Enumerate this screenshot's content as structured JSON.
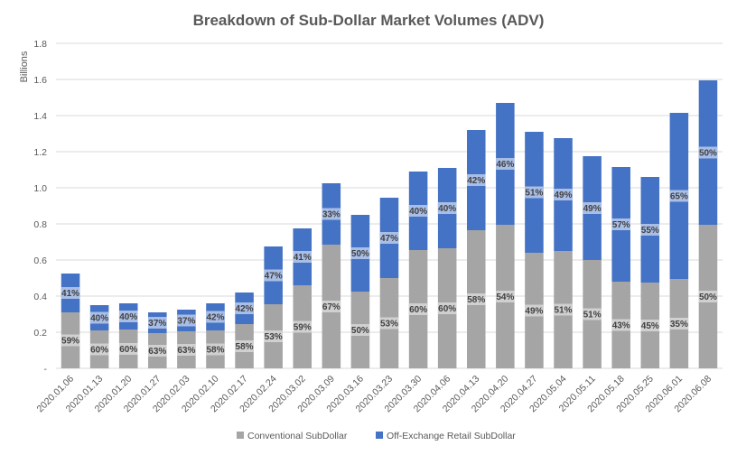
{
  "chart_data": {
    "type": "bar",
    "stacked": true,
    "title": "Breakdown of Sub-Dollar Market Volumes (ADV)",
    "ylabel": "Billions",
    "xlabel": "",
    "ylim": [
      0,
      1.8
    ],
    "yticks": [
      0,
      0.2,
      0.4,
      0.6,
      0.8,
      1.0,
      1.2,
      1.4,
      1.6,
      1.8
    ],
    "ytick_labels": [
      "-",
      "0.2",
      "0.4",
      "0.6",
      "0.8",
      "1.0",
      "1.2",
      "1.4",
      "1.6",
      "1.8"
    ],
    "categories": [
      "2020.01.06",
      "2020.01.13",
      "2020.01.20",
      "2020.01.27",
      "2020.02.03",
      "2020.02.10",
      "2020.02.17",
      "2020.02.24",
      "2020.03.02",
      "2020.03.09",
      "2020.03.16",
      "2020.03.23",
      "2020.03.30",
      "2020.04.06",
      "2020.04.13",
      "2020.04.20",
      "2020.04.27",
      "2020.05.04",
      "2020.05.11",
      "2020.05.18",
      "2020.05.25",
      "2020.06.01",
      "2020.06.08"
    ],
    "series": [
      {
        "name": "Conventional SubDollar",
        "color": "#A5A5A5",
        "label_bg": "#D0D0D0",
        "values": [
          0.31,
          0.21,
          0.215,
          0.195,
          0.205,
          0.21,
          0.245,
          0.355,
          0.46,
          0.685,
          0.425,
          0.5,
          0.655,
          0.665,
          0.765,
          0.795,
          0.64,
          0.65,
          0.6,
          0.48,
          0.475,
          0.495,
          0.795
        ],
        "labels": [
          "59%",
          "60%",
          "60%",
          "63%",
          "63%",
          "58%",
          "58%",
          "53%",
          "59%",
          "67%",
          "50%",
          "53%",
          "60%",
          "60%",
          "58%",
          "54%",
          "49%",
          "51%",
          "51%",
          "43%",
          "45%",
          "35%",
          "50%"
        ]
      },
      {
        "name": "Off-Exchange Retail SubDollar",
        "color": "#4472C4",
        "label_bg": "#A9BEE6",
        "values": [
          0.215,
          0.14,
          0.145,
          0.115,
          0.12,
          0.15,
          0.175,
          0.32,
          0.315,
          0.34,
          0.425,
          0.445,
          0.435,
          0.445,
          0.555,
          0.675,
          0.67,
          0.625,
          0.575,
          0.635,
          0.585,
          0.92,
          0.8
        ],
        "labels": [
          "41%",
          "40%",
          "40%",
          "37%",
          "37%",
          "42%",
          "42%",
          "47%",
          "41%",
          "33%",
          "50%",
          "47%",
          "40%",
          "40%",
          "42%",
          "46%",
          "51%",
          "49%",
          "49%",
          "57%",
          "55%",
          "65%",
          "50%"
        ]
      }
    ],
    "legend": "bottom"
  }
}
